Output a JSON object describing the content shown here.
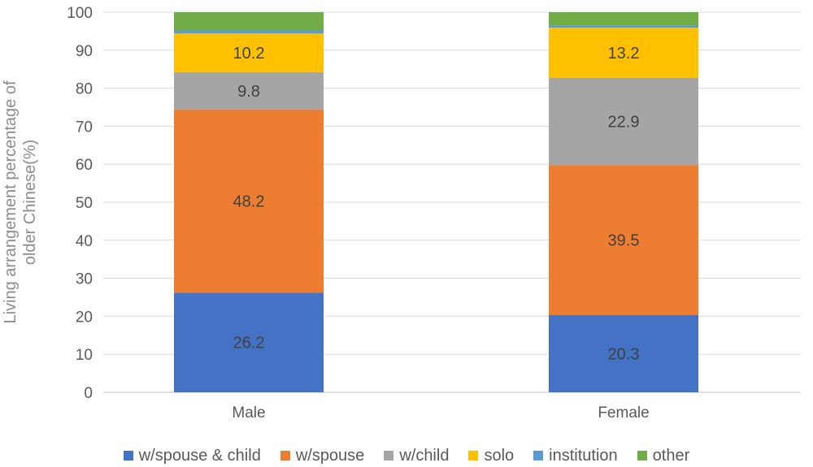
{
  "chart_data": {
    "type": "bar",
    "stacked": true,
    "title": "",
    "xlabel": "",
    "ylabel_lines": [
      "Living arrangement percentage of",
      "older Chinese(%)"
    ],
    "categories": [
      "Male",
      "Female"
    ],
    "ylim": [
      0,
      100
    ],
    "yticks": [
      "0",
      "10",
      "20",
      "30",
      "40",
      "50",
      "60",
      "70",
      "80",
      "90",
      "100"
    ],
    "grid": true,
    "legend_position": "bottom",
    "series": [
      {
        "name": "w/spouse & child",
        "color": "#4472c4",
        "values": [
          26.2,
          20.3
        ],
        "labels": [
          "26.2",
          "20.3"
        ]
      },
      {
        "name": "w/spouse",
        "color": "#ed7d31",
        "values": [
          48.2,
          39.5
        ],
        "labels": [
          "48.2",
          "39.5"
        ]
      },
      {
        "name": "w/child",
        "color": "#a5a5a5",
        "values": [
          9.8,
          22.9
        ],
        "labels": [
          "9.8",
          "22.9"
        ]
      },
      {
        "name": "solo",
        "color": "#ffc000",
        "values": [
          10.2,
          13.2
        ],
        "labels": [
          "10.2",
          "13.2"
        ]
      },
      {
        "name": "institution",
        "color": "#5b9bd5",
        "values": [
          0.8,
          0.6
        ],
        "labels": [
          "",
          ""
        ]
      },
      {
        "name": "other",
        "color": "#70ad47",
        "values": [
          4.8,
          3.5
        ],
        "labels": [
          "",
          ""
        ]
      }
    ]
  }
}
